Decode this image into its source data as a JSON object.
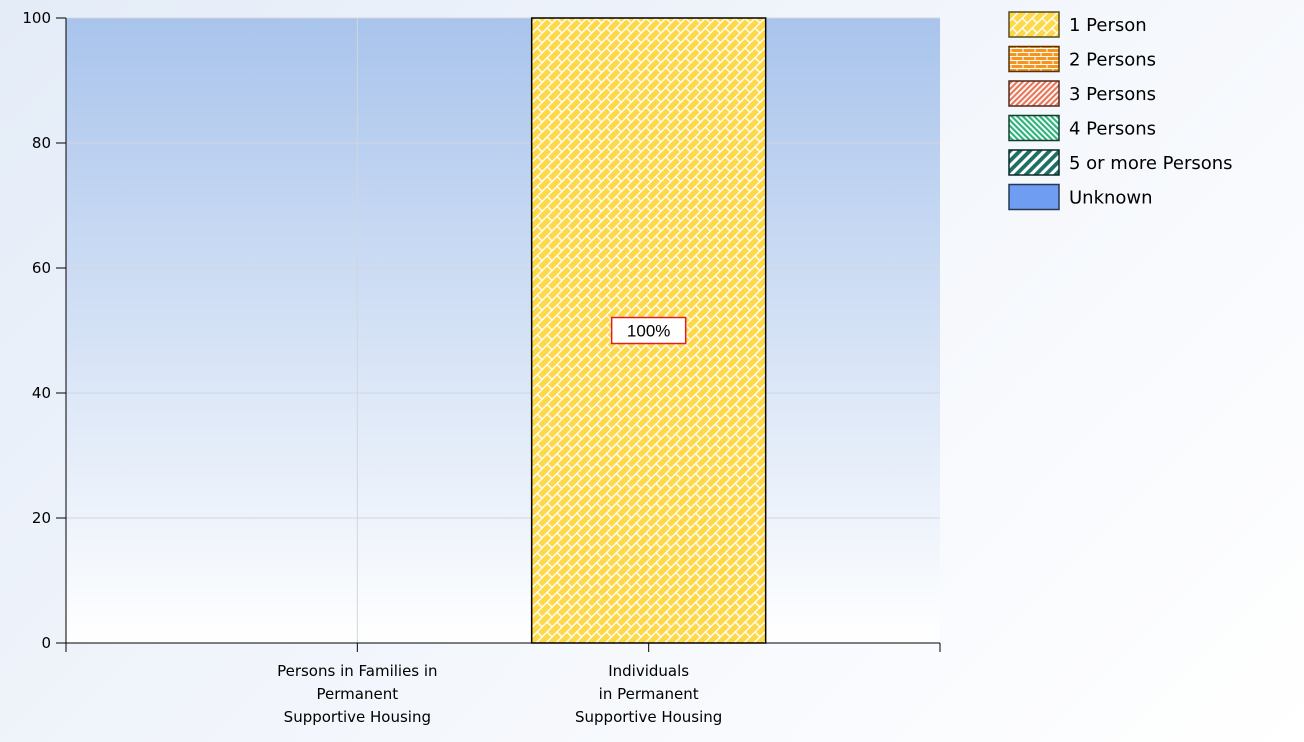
{
  "chart_data": {
    "type": "bar",
    "stacked": true,
    "categories": [
      [
        "Persons in Families in",
        "Permanent",
        "Supportive Housing"
      ],
      [
        "Individuals",
        "in Permanent",
        "Supportive Housing"
      ]
    ],
    "series": [
      {
        "name": "1 Person",
        "values": [
          0,
          100
        ],
        "color": "#ffd84a",
        "pattern": "brick-diagonal"
      },
      {
        "name": "2 Persons",
        "values": [
          0,
          0
        ],
        "color": "#f7941d",
        "pattern": "brick"
      },
      {
        "name": "3 Persons",
        "values": [
          0,
          0
        ],
        "color": "#e8775a",
        "pattern": "diagonal-right"
      },
      {
        "name": "4 Persons",
        "values": [
          0,
          0
        ],
        "color": "#2fb37d",
        "pattern": "diagonal-left"
      },
      {
        "name": "5 or more Persons",
        "values": [
          0,
          0
        ],
        "color": "#1f6e66",
        "pattern": "diagonal-wide"
      },
      {
        "name": "Unknown",
        "values": [
          0,
          0
        ],
        "color": "#6f9df2",
        "pattern": "solid"
      }
    ],
    "data_labels": [
      {
        "category_index": 1,
        "series_index": 0,
        "text": "100%"
      }
    ],
    "yticks": [
      0,
      20,
      40,
      60,
      80,
      100
    ],
    "ylim": [
      0,
      100
    ],
    "grid": true,
    "legend_position": "top-right",
    "plot_background": [
      "#a9c4ec",
      "#ffffff"
    ]
  }
}
